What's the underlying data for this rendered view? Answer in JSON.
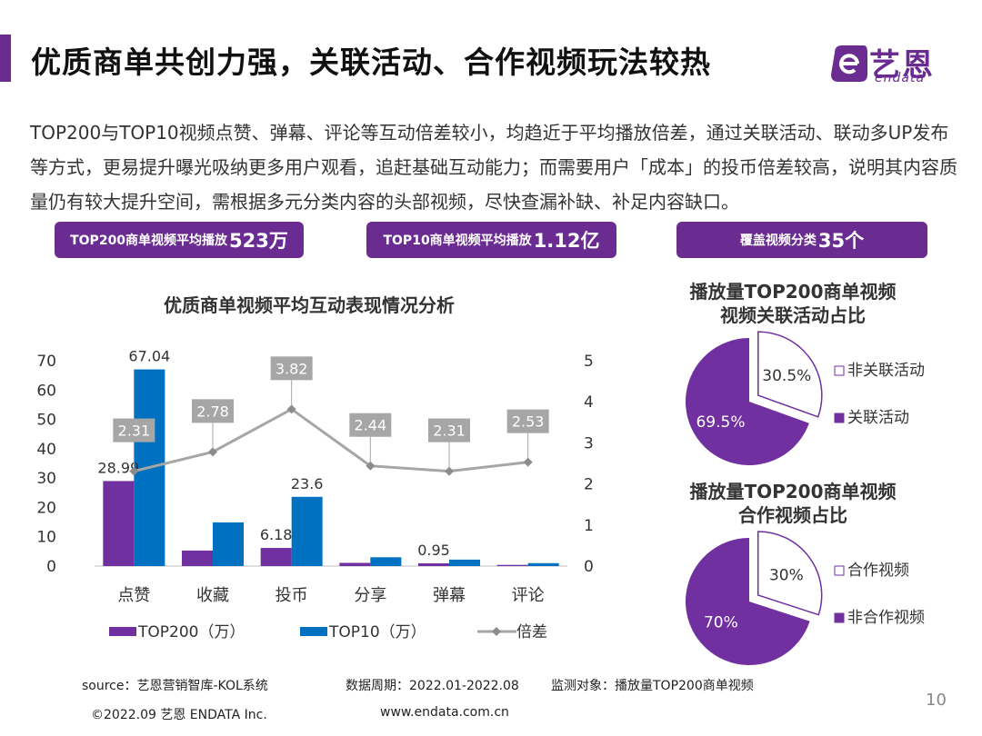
{
  "header": {
    "title": "优质商单共创力强，关联活动、合作视频玩法较热",
    "logo_cn": "艺恩",
    "logo_en": "endata"
  },
  "intro": "TOP200与TOP10视频点赞、弹幕、评论等互动倍差较小，均趋近于平均播放倍差，通过关联活动、联动多UP发布等方式，更易提升曝光吸纳更多用户观看，追赶基础互动能力；而需要用户「成本」的投币倍差较高，说明其内容质量仍有较大提升空间，需根据多元分类内容的头部视频，尽快查漏补缺、补足内容缺口。",
  "pills": [
    {
      "label": "TOP200商单视频平均播放",
      "value": "523万"
    },
    {
      "label": "TOP10商单视频平均播放",
      "value": "1.12亿"
    },
    {
      "label": "覆盖视频分类",
      "value": "35个"
    }
  ],
  "colors": {
    "brand": "#6a2c91",
    "top200": "#7030a0",
    "top10": "#0070c0",
    "ratio_line": "#a6a6a6"
  },
  "chart_data": [
    {
      "type": "bar",
      "title": "优质商单视频平均互动表现情况分析",
      "categories": [
        "点赞",
        "收藏",
        "投币",
        "分享",
        "弹幕",
        "评论"
      ],
      "series": [
        {
          "name": "TOP200（万）",
          "type": "bar",
          "axis": "left",
          "values": [
            28.99,
            5.3,
            6.18,
            1.1,
            0.95,
            0.4
          ]
        },
        {
          "name": "TOP10（万）",
          "type": "bar",
          "axis": "left",
          "values": [
            67.04,
            14.9,
            23.6,
            3.0,
            2.2,
            1.0
          ]
        },
        {
          "name": "倍差",
          "type": "line",
          "axis": "right",
          "values": [
            2.31,
            2.78,
            3.82,
            2.44,
            2.31,
            2.53
          ]
        }
      ],
      "data_labels": {
        "top200": [
          "28.99",
          "",
          "6.18",
          "",
          "0.95",
          ""
        ],
        "top10": [
          "67.04",
          "",
          "23.6",
          "",
          "",
          ""
        ]
      },
      "ylim": [
        0,
        70
      ],
      "yticks": [
        "0",
        "10",
        "20",
        "30",
        "40",
        "50",
        "60",
        "70"
      ],
      "y2lim": [
        0,
        5
      ],
      "y2ticks": [
        "0",
        "1",
        "2",
        "3",
        "4",
        "5"
      ],
      "legend": "bottom"
    },
    {
      "type": "pie",
      "title_line1": "播放量TOP200商单视频",
      "title_line2": "视频关联活动占比",
      "slices": [
        {
          "label": "非关联活动",
          "value": 30.5,
          "text": "30.5%",
          "style": "outline"
        },
        {
          "label": "关联活动",
          "value": 69.5,
          "text": "69.5%",
          "style": "filled"
        }
      ]
    },
    {
      "type": "pie",
      "title_line1": "播放量TOP200商单视频",
      "title_line2": "合作视频占比",
      "slices": [
        {
          "label": "合作视频",
          "value": 30,
          "text": "30%",
          "style": "outline"
        },
        {
          "label": "非合作视频",
          "value": 70,
          "text": "70%",
          "style": "filled"
        }
      ]
    }
  ],
  "footer": {
    "source": "source：艺恩营销智库-KOL系统",
    "period": "数据周期：2022.01-2022.08",
    "target": "监测对象：播放量TOP200商单视频",
    "copyright": "©2022.09 艺恩 ENDATA Inc.",
    "url": "www.endata.com.cn",
    "page": "10"
  }
}
